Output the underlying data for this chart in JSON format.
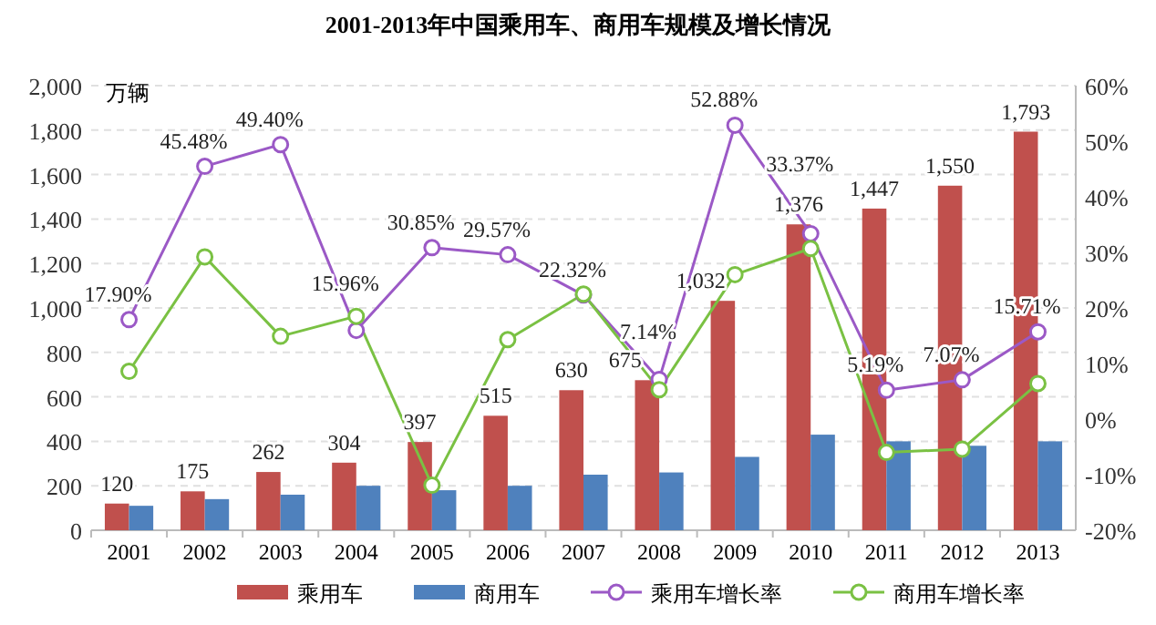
{
  "chart_data": {
    "type": "bar",
    "title": "2001-2013年中国乘用车、商用车规模及增长情况",
    "ylabel": "万辆",
    "categories": [
      "2001",
      "2002",
      "2003",
      "2004",
      "2005",
      "2006",
      "2007",
      "2008",
      "2009",
      "2010",
      "2011",
      "2012",
      "2013"
    ],
    "series": [
      {
        "name": "乘用车",
        "color": "#c0504d",
        "values": [
          120,
          175,
          262,
          304,
          397,
          515,
          630,
          675,
          1032,
          1376,
          1447,
          1550,
          1793
        ],
        "value_labels": [
          "120",
          "175",
          "262",
          "304",
          "397",
          "515",
          "630",
          "675",
          "1,032",
          "1,376",
          "1,447",
          "1,550",
          "1,793"
        ]
      },
      {
        "name": "商用车",
        "color": "#4f81bd",
        "values": [
          110,
          140,
          160,
          200,
          180,
          200,
          250,
          260,
          330,
          430,
          400,
          380,
          400
        ]
      },
      {
        "name": "乘用车增长率",
        "type": "line",
        "axis": "y2",
        "color": "#9b59c6",
        "marker": "circle",
        "values": [
          17.9,
          45.48,
          49.4,
          15.96,
          30.85,
          29.57,
          22.32,
          7.14,
          52.88,
          33.37,
          5.19,
          7.07,
          15.71
        ],
        "value_labels": [
          "17.90%",
          "45.48%",
          "49.40%",
          "15.96%",
          "30.85%",
          "29.57%",
          "22.32%",
          "7.14%",
          "52.88%",
          "33.37%",
          "5.19%",
          "7.07%",
          "15.71%"
        ]
      },
      {
        "name": "商用车增长率",
        "type": "line",
        "axis": "y2",
        "color": "#7ac143",
        "marker": "circle",
        "values": [
          8.6,
          29.2,
          14.9,
          18.5,
          -11.9,
          14.3,
          22.5,
          5.3,
          26,
          30.7,
          -6,
          -5.4,
          6.4
        ]
      }
    ],
    "ylim": [
      0,
      2000
    ],
    "yticks": [
      {
        "value": 0,
        "label": "0"
      },
      {
        "value": 200,
        "label": "200"
      },
      {
        "value": 400,
        "label": "400"
      },
      {
        "value": 600,
        "label": "600"
      },
      {
        "value": 800,
        "label": "800"
      },
      {
        "value": 1000,
        "label": "1,000"
      },
      {
        "value": 1200,
        "label": "1,200"
      },
      {
        "value": 1400,
        "label": "1,400"
      },
      {
        "value": 1600,
        "label": "1,600"
      },
      {
        "value": 1800,
        "label": "1,800"
      },
      {
        "value": 2000,
        "label": "2,000"
      }
    ],
    "y2lim": [
      -20,
      60
    ],
    "y2ticks": [
      {
        "value": -20,
        "label": "-20%"
      },
      {
        "value": -10,
        "label": "-10%"
      },
      {
        "value": 0,
        "label": "0%"
      },
      {
        "value": 10,
        "label": "10%"
      },
      {
        "value": 20,
        "label": "20%"
      },
      {
        "value": 30,
        "label": "30%"
      },
      {
        "value": 40,
        "label": "40%"
      },
      {
        "value": 50,
        "label": "50%"
      },
      {
        "value": 60,
        "label": "60%"
      }
    ],
    "grid": "y",
    "legend": "bottom"
  }
}
